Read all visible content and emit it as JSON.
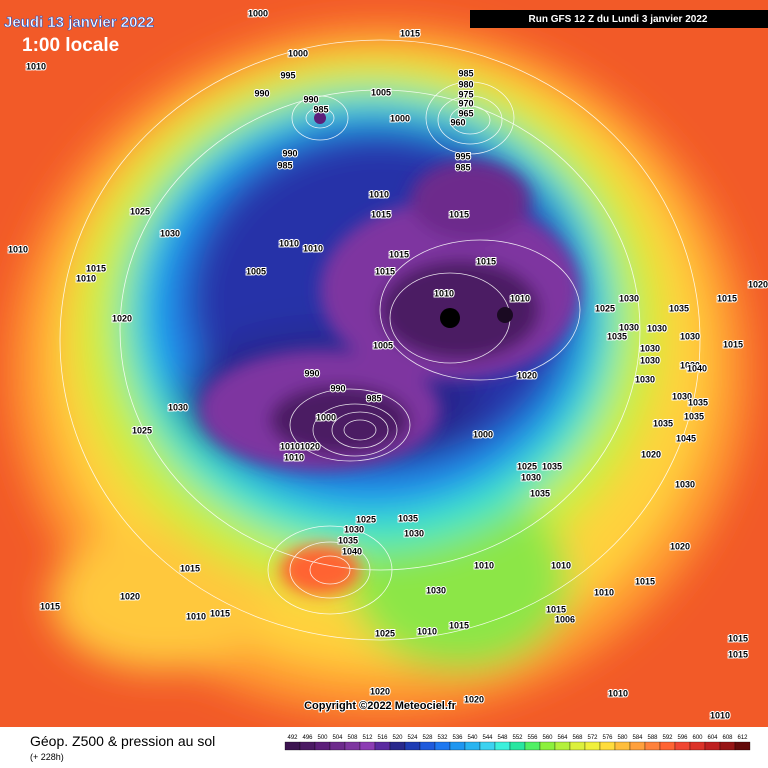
{
  "header": {
    "date": "Jeudi 13 janvier 2022",
    "time": "1:00 locale",
    "run": "Run GFS 12 Z du Lundi 3 janvier 2022"
  },
  "map": {
    "isobar_labels": [
      1000,
      1015,
      1010,
      1000,
      995,
      990,
      990,
      985,
      1005,
      1000,
      985,
      980,
      975,
      970,
      965,
      960,
      990,
      985,
      995,
      985,
      1010,
      1015,
      1015,
      1025,
      1030,
      1010,
      1010,
      1015,
      1015,
      1005,
      1015,
      1010,
      1015,
      1010,
      1020,
      1010,
      1010,
      1030,
      1035,
      1015,
      1025,
      1030,
      1030,
      1035,
      1030,
      1015,
      1030,
      1030,
      1030,
      1040,
      1005,
      990,
      990,
      1020,
      1030,
      1030,
      985,
      1030,
      1035,
      1035,
      1000,
      1025,
      1010,
      1020,
      1010,
      1000,
      1035,
      1045,
      1020,
      1025,
      1035,
      1030,
      1030,
      1035,
      1025,
      1035,
      1030,
      1035,
      1040,
      1030,
      1020,
      1015,
      1010,
      1010,
      1015,
      1015,
      1020,
      1010,
      1015,
      1030,
      1010,
      1015,
      1010,
      1015,
      1006,
      1025,
      1015,
      1015,
      1020,
      1020,
      1010,
      1010,
      1020
    ]
  },
  "copyright": "Copyright ©2022 Meteociel.fr",
  "footer": {
    "title": "Géop. Z500 & pression au sol",
    "lead": "(+ 228h)",
    "scale": {
      "values": [
        492,
        496,
        500,
        504,
        508,
        512,
        516,
        520,
        524,
        528,
        532,
        536,
        540,
        544,
        548,
        552,
        556,
        560,
        564,
        568,
        572,
        576,
        580,
        584,
        588,
        592,
        596,
        600,
        604,
        608,
        612
      ],
      "colors": [
        "#3c1450",
        "#4b1a64",
        "#5c1f7a",
        "#6d2a8c",
        "#7e36a0",
        "#8c3cb4",
        "#5a2aa0",
        "#28288c",
        "#1e3cb4",
        "#1e5adc",
        "#1e78f0",
        "#1e96f0",
        "#28b4f0",
        "#3cd2f0",
        "#3cf0dc",
        "#28e6a0",
        "#50f064",
        "#8cf03c",
        "#b4f03c",
        "#dcf03c",
        "#f0f03c",
        "#ffdc3c",
        "#ffbe3c",
        "#ffa03c",
        "#ff823c",
        "#ff6432",
        "#f04632",
        "#dc3228",
        "#be2020",
        "#961414",
        "#640a0a"
      ]
    }
  }
}
